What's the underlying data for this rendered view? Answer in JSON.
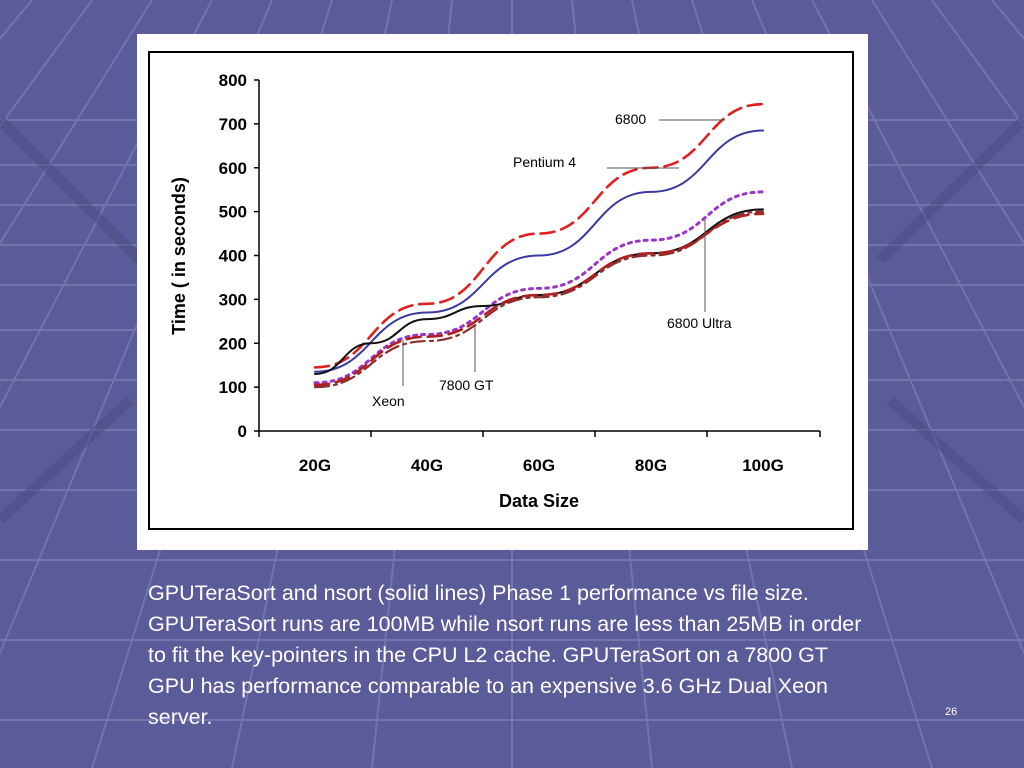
{
  "theme": {
    "background": "#5a5b98",
    "grid_line": "#8789bd",
    "grid_shadow": "#4a4a82",
    "text": "#ffffff"
  },
  "chart_data": {
    "type": "line",
    "xlabel": "Data Size",
    "ylabel": "Time ( in seconds)",
    "categories": [
      "20G",
      "40G",
      "60G",
      "80G",
      "100G"
    ],
    "x": [
      20,
      40,
      60,
      80,
      100
    ],
    "ylim": [
      0,
      800
    ],
    "yticks": [
      0,
      100,
      200,
      300,
      400,
      500,
      600,
      700,
      800
    ],
    "grid": false,
    "legend": "none (series labeled with callouts)",
    "series": [
      {
        "name": "6800",
        "color": "#e02020",
        "style": "dashed",
        "x": [
          20,
          40,
          60,
          80,
          100
        ],
        "values": [
          145,
          290,
          450,
          600,
          745
        ]
      },
      {
        "name": "Pentium 4",
        "color": "#3a3aa0",
        "style": "solid",
        "x": [
          20,
          40,
          60,
          80,
          100
        ],
        "values": [
          135,
          270,
          400,
          545,
          685
        ]
      },
      {
        "name": "",
        "color": "#9a35c8",
        "style": "dotted",
        "x": [
          20,
          40,
          60,
          80,
          100
        ],
        "values": [
          110,
          220,
          325,
          435,
          545
        ]
      },
      {
        "name": "6800 Ultra",
        "color": "#111111",
        "style": "solid",
        "x": [
          20,
          30,
          40,
          50,
          60,
          80,
          100
        ],
        "values": [
          130,
          200,
          255,
          285,
          310,
          405,
          505
        ]
      },
      {
        "name": "7800 GT",
        "color": "#8a3030",
        "style": "dash-dot",
        "x": [
          20,
          40,
          60,
          80,
          100
        ],
        "values": [
          100,
          205,
          305,
          400,
          500
        ]
      },
      {
        "name": "Xeon",
        "color": "#b02020",
        "style": "dashed",
        "x": [
          20,
          40,
          60,
          80,
          100
        ],
        "values": [
          105,
          215,
          310,
          405,
          495
        ]
      }
    ],
    "annotations": [
      {
        "text": "6800",
        "series": "6800",
        "x": 96,
        "y": 720
      },
      {
        "text": "Pentium 4",
        "series": "Pentium 4",
        "x": 86,
        "y": 600
      },
      {
        "text": "6800 Ultra",
        "series": "6800 Ultra",
        "x": 90,
        "y": 480
      },
      {
        "text": "7800 GT",
        "series": "7800 GT",
        "x": 38,
        "y": 240
      },
      {
        "text": "Xeon",
        "series": "Xeon",
        "x": 28,
        "y": 220
      }
    ]
  },
  "caption": "GPUTeraSort and nsort (solid lines) Phase 1 performance vs file size. GPUTeraSort runs are 100MB while nsort runs are less than 25MB in order to fit the key-pointers in the CPU L2 cache. GPUTeraSort on a 7800 GT GPU has performance comparable to an expensive 3.6 GHz Dual Xeon server.",
  "slide_number": "26"
}
